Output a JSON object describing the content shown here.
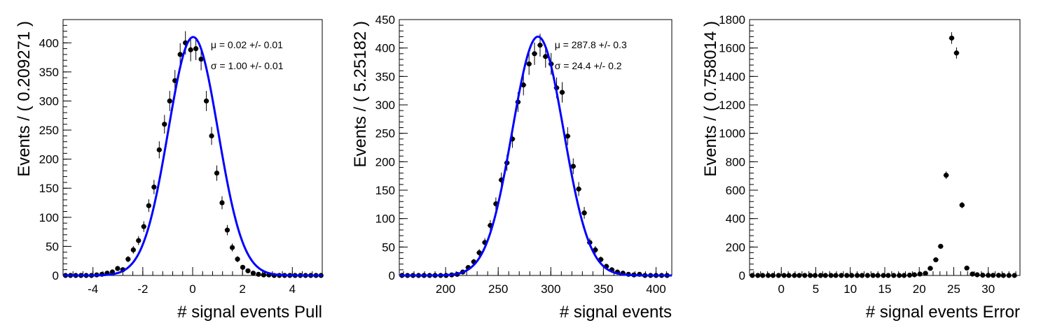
{
  "chart_data": [
    {
      "type": "scatter",
      "xlabel": "# signal events Pull",
      "ylabel": "Events / ( 0.209271 )",
      "xlim": [
        -5.2,
        5.2
      ],
      "ylim": [
        0,
        440
      ],
      "xticks": [
        -4,
        -2,
        0,
        2,
        4
      ],
      "yticks": [
        0,
        50,
        100,
        150,
        200,
        250,
        300,
        350,
        400
      ],
      "fit": {
        "mean": 0.02,
        "sigma": 1.0,
        "amplitude": 410,
        "color": "#0000ff"
      },
      "annotations": [
        "μ =  0.02 +/- 0.01",
        "σ =  1.00 +/- 0.01"
      ],
      "points": {
        "x": [
          -5.1,
          -4.9,
          -4.69,
          -4.48,
          -4.27,
          -4.06,
          -3.85,
          -3.64,
          -3.43,
          -3.22,
          -3.01,
          -2.8,
          -2.59,
          -2.38,
          -2.17,
          -1.96,
          -1.76,
          -1.55,
          -1.34,
          -1.13,
          -0.92,
          -0.71,
          -0.5,
          -0.29,
          -0.08,
          0.13,
          0.34,
          0.55,
          0.76,
          0.97,
          1.18,
          1.39,
          1.59,
          1.8,
          2.01,
          2.22,
          2.43,
          2.64,
          2.85,
          3.06,
          3.27,
          3.48,
          3.69,
          3.9,
          4.11,
          4.32,
          4.53,
          4.74,
          4.95,
          5.15
        ],
        "y": [
          0,
          0,
          0,
          0,
          0,
          0,
          1,
          2,
          4,
          6,
          12,
          10,
          28,
          44,
          60,
          84,
          120,
          152,
          216,
          260,
          300,
          335,
          380,
          400,
          388,
          390,
          372,
          300,
          240,
          176,
          125,
          78,
          48,
          28,
          14,
          8,
          4,
          2,
          1,
          1,
          0,
          0,
          0,
          0,
          0,
          0,
          0,
          0,
          0,
          0
        ]
      }
    },
    {
      "type": "scatter",
      "xlabel": "# signal events",
      "ylabel": "Events / ( 5.25182 )",
      "xlim": [
        156,
        415
      ],
      "ylim": [
        0,
        450
      ],
      "xticks": [
        200,
        250,
        300,
        350,
        400
      ],
      "yticks": [
        0,
        50,
        100,
        150,
        200,
        250,
        300,
        350,
        400,
        450
      ],
      "fit": {
        "mean": 287.8,
        "sigma": 24.4,
        "amplitude": 420,
        "color": "#0000ff"
      },
      "annotations": [
        "μ =  287.8 +/- 0.3",
        "σ =  24.4 +/- 0.2"
      ],
      "points": {
        "x": [
          158.5,
          163.8,
          169.0,
          174.3,
          179.5,
          184.8,
          190.0,
          195.3,
          200.5,
          205.8,
          211.0,
          216.3,
          221.5,
          226.8,
          232.0,
          237.3,
          242.5,
          247.8,
          253.0,
          258.3,
          263.5,
          268.8,
          274.0,
          279.3,
          284.5,
          289.8,
          295.0,
          300.3,
          305.5,
          310.8,
          316.0,
          321.3,
          326.5,
          331.8,
          337.0,
          342.3,
          347.5,
          352.8,
          358.0,
          363.3,
          368.5,
          373.8,
          379.0,
          384.3,
          389.5,
          394.8,
          400.0,
          405.3,
          410.5
        ],
        "y": [
          0,
          0,
          0,
          0,
          0,
          0,
          0,
          0,
          0,
          1,
          2,
          6,
          14,
          24,
          40,
          58,
          88,
          126,
          168,
          198,
          240,
          305,
          335,
          372,
          390,
          405,
          385,
          372,
          330,
          322,
          245,
          192,
          152,
          110,
          58,
          45,
          28,
          16,
          10,
          6,
          4,
          2,
          1,
          2,
          0,
          0,
          0,
          0,
          0
        ]
      }
    },
    {
      "type": "scatter",
      "xlabel": "# signal events Error",
      "ylabel": "Events / ( 0.758014 )",
      "xlim": [
        -4.6,
        34.6
      ],
      "ylim": [
        0,
        1800
      ],
      "xticks": [
        0,
        5,
        10,
        15,
        20,
        25,
        30
      ],
      "yticks": [
        0,
        200,
        400,
        600,
        800,
        1000,
        1200,
        1400,
        1600,
        1800
      ],
      "points": {
        "x": [
          -4.2,
          -3.4,
          -2.7,
          -1.9,
          -1.2,
          -0.4,
          0.4,
          1.1,
          1.9,
          2.6,
          3.4,
          4.2,
          4.9,
          5.7,
          6.4,
          7.2,
          7.9,
          8.7,
          9.5,
          10.2,
          11.0,
          11.7,
          12.5,
          13.3,
          14.0,
          14.8,
          15.5,
          16.3,
          17.1,
          17.8,
          18.6,
          19.3,
          20.1,
          20.9,
          21.6,
          22.4,
          23.1,
          23.9,
          24.7,
          25.4,
          26.2,
          26.9,
          27.7,
          28.4,
          29.2,
          30.0,
          30.7,
          31.5,
          32.2,
          33.0,
          33.8
        ],
        "y": [
          0,
          0,
          0,
          0,
          0,
          0,
          0,
          0,
          0,
          0,
          0,
          0,
          0,
          0,
          0,
          0,
          0,
          0,
          0,
          0,
          0,
          0,
          0,
          0,
          0,
          0,
          0,
          0,
          0,
          0,
          2,
          5,
          10,
          15,
          50,
          110,
          205,
          705,
          1670,
          1565,
          495,
          52,
          10,
          5,
          2,
          1,
          1,
          1,
          0,
          0,
          0
        ]
      }
    }
  ]
}
